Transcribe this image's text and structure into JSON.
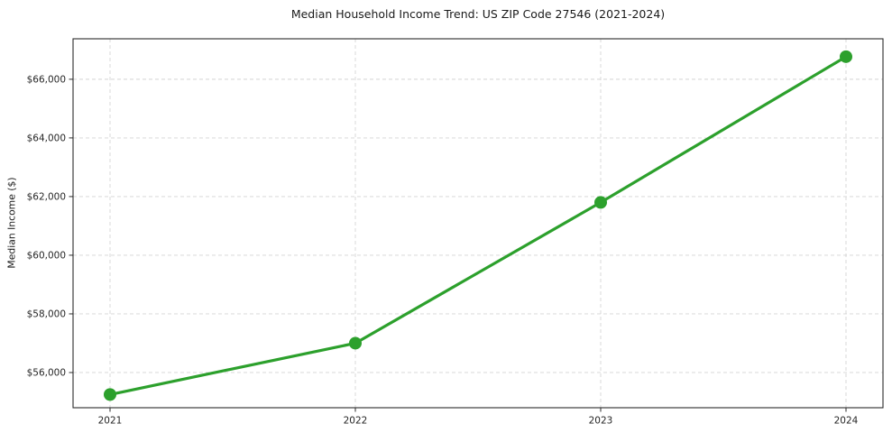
{
  "title": "Median Household Income Trend: US ZIP Code 27546 (2021-2024)",
  "chart_data": {
    "type": "line",
    "title": "Median Household Income Trend: US ZIP Code 27546 (2021-2024)",
    "x": [
      2021,
      2022,
      2023,
      2024
    ],
    "x_tick_labels": [
      "2021",
      "2022",
      "2023",
      "2024"
    ],
    "series": [
      {
        "name": "Median Household Income",
        "values": [
          55250,
          57000,
          61800,
          66770
        ]
      }
    ],
    "xlabel": "",
    "ylabel": "Median Income ($)",
    "ylim": [
      54800,
      67380
    ],
    "y_ticks": [
      56000,
      58000,
      60000,
      62000,
      64000,
      66000
    ],
    "y_tick_labels": [
      "$56,000",
      "$58,000",
      "$60,000",
      "$62,000",
      "$64,000",
      "$66,000"
    ],
    "grid": "dashed",
    "legend": "none",
    "line_color": "#2ca02c",
    "marker": "circle",
    "gridline_color": "#d4d4d4",
    "spine_color": "#2b2b2b",
    "background_color": "#ffffff"
  }
}
